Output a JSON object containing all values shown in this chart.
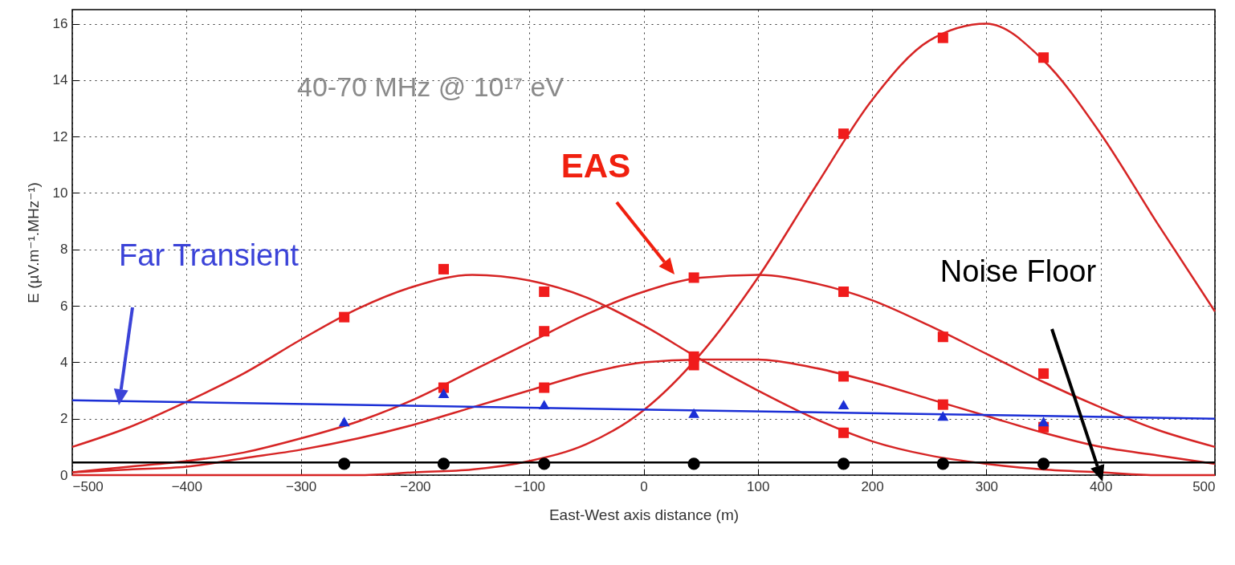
{
  "chart_data": {
    "type": "line",
    "xlabel": "East-West axis distance (m)",
    "ylabel": "E (µV.m⁻¹.MHz⁻¹)",
    "xlim": [
      -500,
      500
    ],
    "ylim": [
      0,
      16.5
    ],
    "xticks": [
      -500,
      -400,
      -300,
      -200,
      -100,
      0,
      100,
      200,
      300,
      400,
      500
    ],
    "yticks": [
      0,
      2,
      4,
      6,
      8,
      10,
      12,
      14,
      16
    ],
    "grid": true,
    "annotations": [
      "40-70 MHz @ 10¹⁷ eV",
      "EAS",
      "Far Transient",
      "Noise Floor"
    ],
    "series": [
      {
        "marker": "none",
        "color": "#d62424",
        "x": [
          -500,
          -450,
          -400,
          -350,
          -300,
          -250,
          -200,
          -150,
          -100,
          -50,
          0,
          50,
          100,
          150,
          200,
          250,
          300,
          350,
          400,
          450,
          500
        ],
        "values": [
          1.0,
          1.7,
          2.6,
          3.6,
          4.8,
          5.9,
          6.7,
          7.1,
          6.9,
          6.3,
          5.3,
          4.1,
          3.0,
          2.0,
          1.2,
          0.7,
          0.4,
          0.2,
          0.1,
          0.0,
          0.0
        ]
      },
      {
        "marker": "none",
        "color": "#d62424",
        "x": [
          -500,
          -450,
          -400,
          -350,
          -300,
          -250,
          -200,
          -150,
          -100,
          -50,
          0,
          50,
          100,
          150,
          200,
          250,
          300,
          350,
          400,
          450,
          500
        ],
        "values": [
          0.1,
          0.3,
          0.5,
          0.8,
          1.3,
          1.9,
          2.7,
          3.7,
          4.7,
          5.7,
          6.5,
          7.0,
          7.1,
          6.8,
          6.2,
          5.3,
          4.3,
          3.3,
          2.4,
          1.6,
          1.0
        ]
      },
      {
        "marker": "none",
        "color": "#d62424",
        "x": [
          -500,
          -450,
          -400,
          -350,
          -300,
          -250,
          -200,
          -150,
          -100,
          -50,
          0,
          50,
          100,
          150,
          200,
          250,
          300,
          350,
          400,
          450,
          500
        ],
        "values": [
          0.1,
          0.2,
          0.3,
          0.6,
          0.9,
          1.3,
          1.8,
          2.4,
          3.0,
          3.6,
          4.0,
          4.1,
          4.1,
          3.8,
          3.3,
          2.7,
          2.1,
          1.5,
          1.0,
          0.7,
          0.4
        ]
      },
      {
        "marker": "none",
        "color": "#d62424",
        "x": [
          -500,
          -450,
          -400,
          -350,
          -300,
          -250,
          -200,
          -150,
          -100,
          -50,
          0,
          50,
          100,
          150,
          200,
          250,
          300,
          350,
          400,
          450,
          500
        ],
        "values": [
          0.0,
          0.0,
          0.0,
          0.0,
          0.0,
          0.0,
          0.1,
          0.2,
          0.5,
          1.1,
          2.3,
          4.3,
          7.0,
          10.2,
          13.3,
          15.4,
          16.0,
          14.7,
          12.1,
          8.9,
          5.8
        ]
      },
      {
        "marker": "none",
        "color": "#1b2fd6",
        "x": [
          -500,
          500
        ],
        "values": [
          2.65,
          2.0
        ]
      },
      {
        "marker": "none",
        "color": "#000000",
        "x": [
          -500,
          500
        ],
        "values": [
          0.45,
          0.45
        ]
      },
      {
        "type": "scatter",
        "marker": "square",
        "color": "#f01c1c",
        "x": [
          -262,
          -175,
          -175,
          -87,
          -87,
          -87,
          44,
          44,
          44,
          175,
          175,
          175,
          175,
          262,
          262,
          262,
          350,
          350,
          350
        ],
        "values": [
          5.6,
          7.3,
          3.1,
          6.5,
          5.1,
          3.1,
          7.0,
          4.2,
          3.9,
          12.1,
          6.5,
          3.5,
          1.5,
          15.5,
          4.9,
          2.5,
          14.8,
          3.6,
          1.7
        ]
      },
      {
        "type": "scatter",
        "marker": "triangle",
        "color": "#1b2fd6",
        "x": [
          -262,
          -175,
          -87,
          44,
          175,
          262,
          350
        ],
        "values": [
          1.9,
          2.9,
          2.5,
          2.2,
          2.5,
          2.1,
          1.9
        ]
      },
      {
        "type": "scatter",
        "marker": "circle",
        "color": "#000000",
        "x": [
          -262,
          -175,
          -87,
          44,
          175,
          262,
          350
        ],
        "values": [
          0.4,
          0.4,
          0.4,
          0.4,
          0.4,
          0.4,
          0.4
        ]
      }
    ]
  }
}
